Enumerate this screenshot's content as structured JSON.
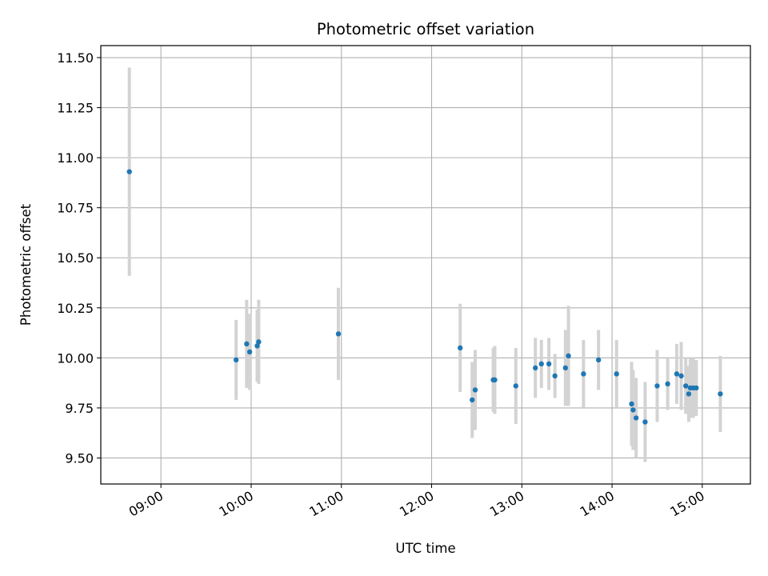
{
  "chart_data": {
    "type": "scatter",
    "title": "Photometric offset variation",
    "xlabel": "UTC time",
    "ylabel": "Photometric offset",
    "xlim": [
      "08:20",
      "15:32"
    ],
    "ylim": [
      9.37,
      11.56
    ],
    "x_ticks": [
      "09:00",
      "10:00",
      "11:00",
      "12:00",
      "13:00",
      "14:00",
      "15:00"
    ],
    "y_ticks": [
      "9.50",
      "9.75",
      "10.00",
      "10.25",
      "10.50",
      "10.75",
      "11.00",
      "11.25",
      "11.50"
    ],
    "grid": true,
    "colors": {
      "points": "#1f77b4",
      "error_bars": "#d3d3d3",
      "grid": "#b0b0b0"
    },
    "points": [
      {
        "x": "08:39",
        "y": 10.93,
        "err": 0.52
      },
      {
        "x": "09:50",
        "y": 9.99,
        "err": 0.2
      },
      {
        "x": "09:57",
        "y": 10.07,
        "err": 0.22
      },
      {
        "x": "09:59",
        "y": 10.03,
        "err": 0.19
      },
      {
        "x": "10:04",
        "y": 10.06,
        "err": 0.18
      },
      {
        "x": "10:05",
        "y": 10.08,
        "err": 0.21
      },
      {
        "x": "10:58",
        "y": 10.12,
        "err": 0.23
      },
      {
        "x": "12:19",
        "y": 10.05,
        "err": 0.22
      },
      {
        "x": "12:27",
        "y": 9.79,
        "err": 0.19
      },
      {
        "x": "12:29",
        "y": 9.84,
        "err": 0.2
      },
      {
        "x": "12:41",
        "y": 9.89,
        "err": 0.16
      },
      {
        "x": "12:42",
        "y": 9.89,
        "err": 0.17
      },
      {
        "x": "12:56",
        "y": 9.86,
        "err": 0.19
      },
      {
        "x": "13:09",
        "y": 9.95,
        "err": 0.15
      },
      {
        "x": "13:13",
        "y": 9.97,
        "err": 0.12
      },
      {
        "x": "13:18",
        "y": 9.97,
        "err": 0.13
      },
      {
        "x": "13:22",
        "y": 9.91,
        "err": 0.11
      },
      {
        "x": "13:29",
        "y": 9.95,
        "err": 0.19
      },
      {
        "x": "13:31",
        "y": 10.01,
        "err": 0.25
      },
      {
        "x": "13:41",
        "y": 9.92,
        "err": 0.17
      },
      {
        "x": "13:51",
        "y": 9.99,
        "err": 0.15
      },
      {
        "x": "14:03",
        "y": 9.92,
        "err": 0.17
      },
      {
        "x": "14:13",
        "y": 9.77,
        "err": 0.21
      },
      {
        "x": "14:14",
        "y": 9.74,
        "err": 0.2
      },
      {
        "x": "14:16",
        "y": 9.7,
        "err": 0.2
      },
      {
        "x": "14:22",
        "y": 9.68,
        "err": 0.2
      },
      {
        "x": "14:30",
        "y": 9.86,
        "err": 0.18
      },
      {
        "x": "14:37",
        "y": 9.87,
        "err": 0.13
      },
      {
        "x": "14:43",
        "y": 9.92,
        "err": 0.15
      },
      {
        "x": "14:46",
        "y": 9.91,
        "err": 0.17
      },
      {
        "x": "14:49",
        "y": 9.86,
        "err": 0.14
      },
      {
        "x": "14:51",
        "y": 9.82,
        "err": 0.14
      },
      {
        "x": "14:52",
        "y": 9.85,
        "err": 0.15
      },
      {
        "x": "14:54",
        "y": 9.85,
        "err": 0.15
      },
      {
        "x": "14:56",
        "y": 9.85,
        "err": 0.14
      },
      {
        "x": "15:12",
        "y": 9.82,
        "err": 0.19
      }
    ]
  }
}
